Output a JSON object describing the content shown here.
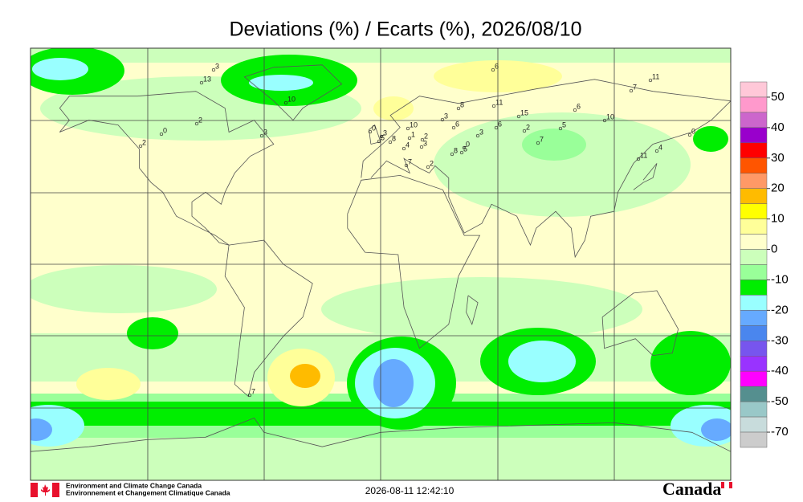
{
  "header": {
    "title": "Deviations (%) / Ecarts (%), 2026/08/10"
  },
  "legend": {
    "labels": [
      "50",
      "40",
      "30",
      "20",
      "10",
      "0",
      "-10",
      "-20",
      "-30",
      "-40",
      "-50",
      "-70"
    ],
    "colors": [
      "#ffc8d8",
      "#ff99cc",
      "#cc66cc",
      "#9900cc",
      "#ff0000",
      "#ff5500",
      "#ff9966",
      "#ffbb00",
      "#ffff00",
      "#ffff99",
      "#ffffcc",
      "#ccffbb",
      "#99ff99",
      "#00ee00",
      "#99ffff",
      "#66aaff",
      "#4a86ee",
      "#7755ee",
      "#9933ff",
      "#ff00ff",
      "#558f8f",
      "#99c8c8",
      "#c8dcdc",
      "#cccccc"
    ]
  },
  "stations": [
    "3",
    "13",
    "10",
    "2",
    "0",
    "2",
    "3",
    "6",
    "11",
    "7",
    "6",
    "10",
    "11",
    "8",
    "3",
    "15",
    "6",
    "2",
    "5",
    "7",
    "3",
    "0",
    "6",
    "10",
    "3",
    "1",
    "5",
    "8",
    "2",
    "3",
    "4",
    "0",
    "8",
    "5",
    "7",
    "2",
    "0",
    "4",
    "11",
    "7"
  ],
  "footer": {
    "agency_en": "Environment and Climate Change Canada",
    "agency_fr": "Environnement et Changement Climatique Canada",
    "timestamp": "2026-08-11 12:42:10",
    "wordmark": "Canada"
  }
}
